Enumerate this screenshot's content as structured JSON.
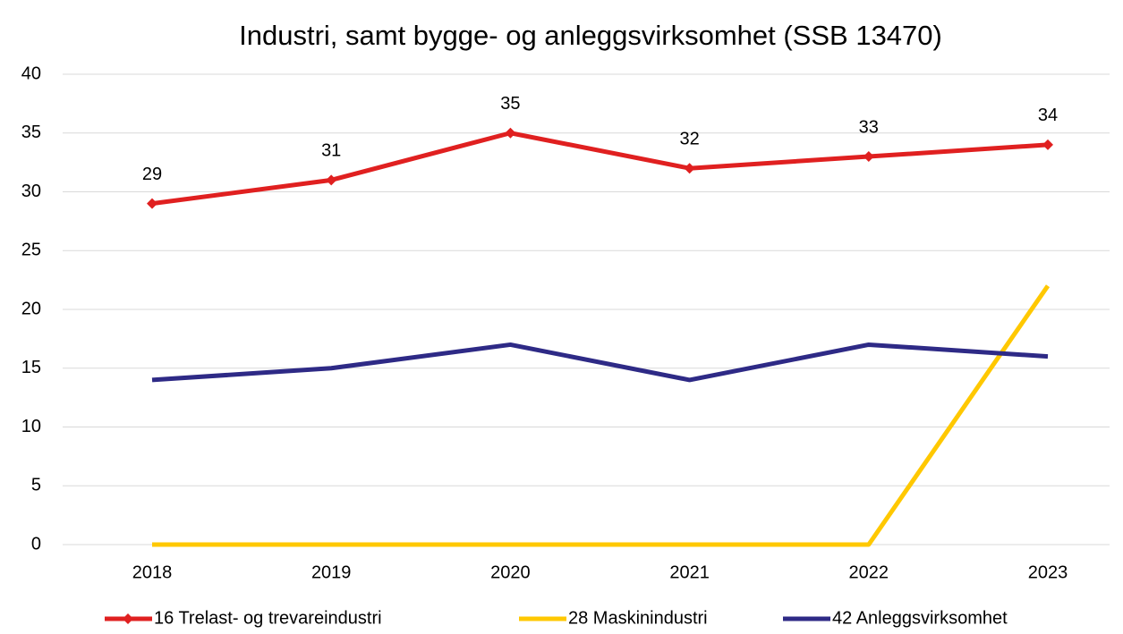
{
  "chart_data": {
    "type": "line",
    "title": "Industri, samt bygge- og anleggsvirksomhet (SSB 13470)",
    "categories": [
      "2018",
      "2019",
      "2020",
      "2021",
      "2022",
      "2023"
    ],
    "series": [
      {
        "name": "16 Trelast- og trevareindustri",
        "color": "#e02020",
        "values": [
          29,
          31,
          35,
          32,
          33,
          34
        ],
        "marker": "diamond",
        "data_labels": true
      },
      {
        "name": "28 Maskinindustri",
        "color": "#ffc800",
        "values": [
          0,
          0,
          0,
          0,
          0,
          22
        ]
      },
      {
        "name": "42 Anleggsvirksomhet",
        "color": "#2e2a86",
        "values": [
          14,
          15,
          17,
          14,
          17,
          16
        ]
      }
    ],
    "ylim": [
      0,
      40
    ],
    "yticks": [
      0,
      5,
      10,
      15,
      20,
      25,
      30,
      35,
      40
    ],
    "grid": true,
    "legend": "bottom"
  }
}
